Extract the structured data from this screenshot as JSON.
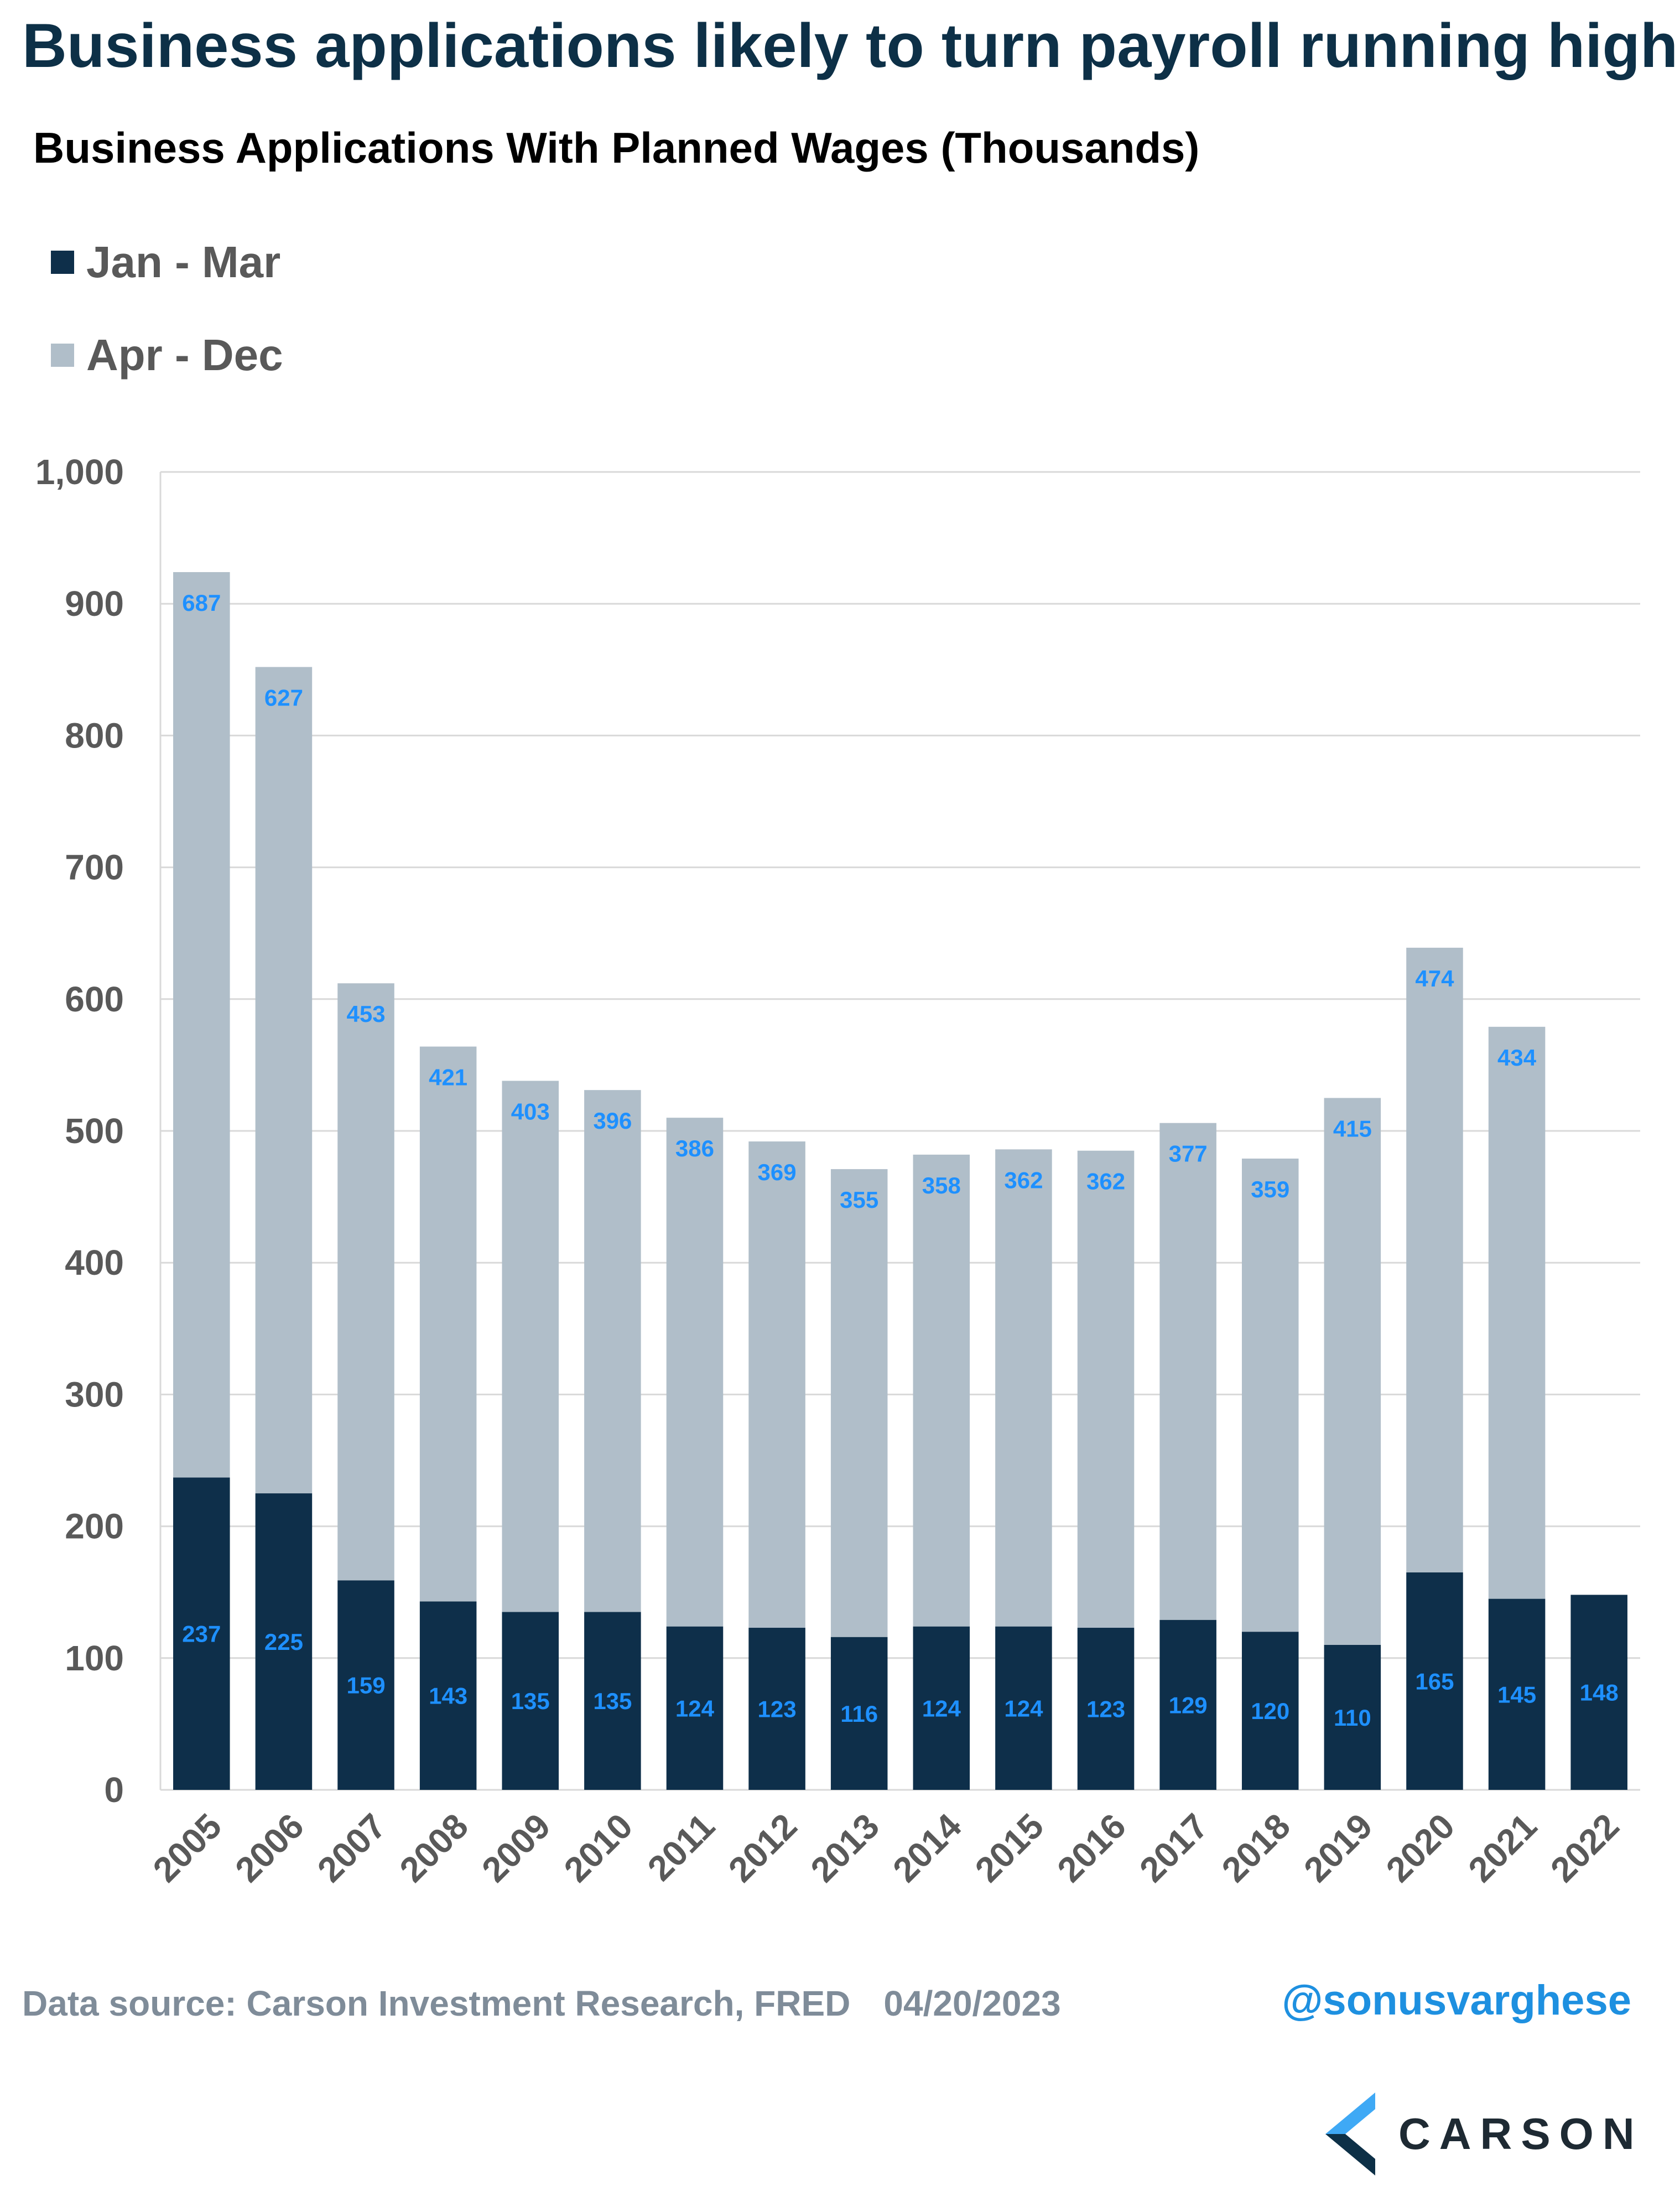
{
  "headline": "Business applications likely to turn payroll running high",
  "colors": {
    "jan_mar": "#0e2f4a",
    "apr_dec": "#b0bec9",
    "label_text": "#1e90ff",
    "gridline": "#d9d9d9",
    "axis_text": "#595959",
    "headline": "#0d3047",
    "handle": "#1e90e0"
  },
  "chart_data": {
    "type": "bar",
    "stacked": true,
    "title": "Business Applications With Planned Wages (Thousands)",
    "xlabel": "",
    "ylabel": "",
    "ylim": [
      0,
      1000
    ],
    "yticks": [
      0,
      100,
      200,
      300,
      400,
      500,
      600,
      700,
      800,
      900,
      1000
    ],
    "ytick_labels": [
      "0",
      "100",
      "200",
      "300",
      "400",
      "500",
      "600",
      "700",
      "800",
      "900",
      "1,000"
    ],
    "grid": true,
    "legend_position": "top-left",
    "categories": [
      "2005",
      "2006",
      "2007",
      "2008",
      "2009",
      "2010",
      "2011",
      "2012",
      "2013",
      "2014",
      "2015",
      "2016",
      "2017",
      "2018",
      "2019",
      "2020",
      "2021",
      "2022"
    ],
    "series": [
      {
        "name": "Jan - Mar",
        "color": "#0e2f4a",
        "values": [
          237,
          225,
          159,
          143,
          135,
          135,
          124,
          123,
          116,
          124,
          124,
          123,
          129,
          120,
          110,
          165,
          145,
          148
        ]
      },
      {
        "name": "Apr - Dec",
        "color": "#b0bec9",
        "values": [
          687,
          627,
          453,
          421,
          403,
          396,
          386,
          369,
          355,
          358,
          362,
          362,
          377,
          359,
          415,
          474,
          434,
          null
        ]
      }
    ]
  },
  "footer": {
    "source": "Data source: Carson Investment Research, FRED",
    "date": "04/20/2023",
    "handle": "@sonusvarghese",
    "logo_text": "CARSON"
  }
}
